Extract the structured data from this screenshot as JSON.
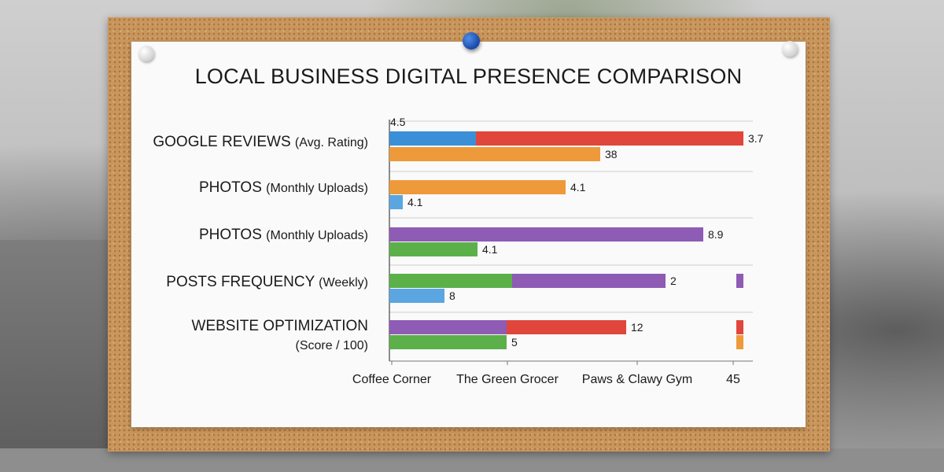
{
  "colors": {
    "blue": "#3a8fd6",
    "red": "#e0463c",
    "orange": "#ee9a3a",
    "purple": "#8e5bb5",
    "green": "#5bb04a",
    "light_blue": "#5ba6e0"
  },
  "chart_data": {
    "type": "bar",
    "orientation": "horizontal",
    "title": "LOCAL BUSINESS DIGITAL PRESENCE COMPARISON",
    "xlim": [
      0,
      45
    ],
    "x_ticks": [
      {
        "value": 0,
        "label": "Coffee Corner"
      },
      {
        "value": 15,
        "label": "The Green Grocer"
      },
      {
        "value": 30,
        "label": "Paws & Clawy Gym"
      },
      {
        "value": 45,
        "label": "45"
      }
    ],
    "categories": [
      {
        "main": "GOOGLE REVIEWS",
        "sub": "(Avg. Rating)"
      },
      {
        "main": "PHOTOS",
        "sub": "(Monthly Uploads)"
      },
      {
        "main": "PHOTOS",
        "sub": "(Monthly Uploads)"
      },
      {
        "main": "POSTS FREQUENCY",
        "sub": "(Weekly)"
      },
      {
        "main": "WEBSITE OPTIMIZATION",
        "sub": "(Score / 100)"
      }
    ],
    "rows": [
      {
        "category": 0,
        "segments": [
          {
            "from": 0,
            "to": 11,
            "color": "blue"
          },
          {
            "from": 11,
            "to": 45,
            "color": "red"
          }
        ],
        "label": "3.7",
        "top_label": "4.5"
      },
      {
        "category": 0,
        "segments": [
          {
            "from": 0,
            "to": 26.8,
            "color": "orange"
          }
        ],
        "label": "38"
      },
      {
        "category": 1,
        "segments": [
          {
            "from": 0,
            "to": 22.4,
            "color": "orange"
          }
        ],
        "label": "4.1"
      },
      {
        "category": 1,
        "segments": [
          {
            "from": 0,
            "to": 1.7,
            "color": "light_blue"
          }
        ],
        "label": "4.1"
      },
      {
        "category": 2,
        "segments": [
          {
            "from": 0,
            "to": 39.9,
            "color": "purple"
          }
        ],
        "label": "8.9"
      },
      {
        "category": 2,
        "segments": [
          {
            "from": 0,
            "to": 11.2,
            "color": "green"
          }
        ],
        "label": "4.1"
      },
      {
        "category": 3,
        "segments": [
          {
            "from": 0,
            "to": 15.6,
            "color": "green"
          },
          {
            "from": 15.6,
            "to": 35.1,
            "color": "purple"
          },
          {
            "from": 44.1,
            "to": 45,
            "color": "purple"
          }
        ],
        "label": "2"
      },
      {
        "category": 3,
        "segments": [
          {
            "from": 0,
            "to": 7,
            "color": "light_blue"
          }
        ],
        "label": "8"
      },
      {
        "category": 4,
        "segments": [
          {
            "from": 0,
            "to": 14.9,
            "color": "purple"
          },
          {
            "from": 14.9,
            "to": 30.1,
            "color": "red"
          },
          {
            "from": 44.1,
            "to": 45,
            "color": "red"
          }
        ],
        "label": "12"
      },
      {
        "category": 4,
        "segments": [
          {
            "from": 0,
            "to": 14.9,
            "color": "green"
          },
          {
            "from": 44.1,
            "to": 45,
            "color": "orange"
          }
        ],
        "label": "5"
      }
    ],
    "grid": true,
    "legend": "none"
  }
}
